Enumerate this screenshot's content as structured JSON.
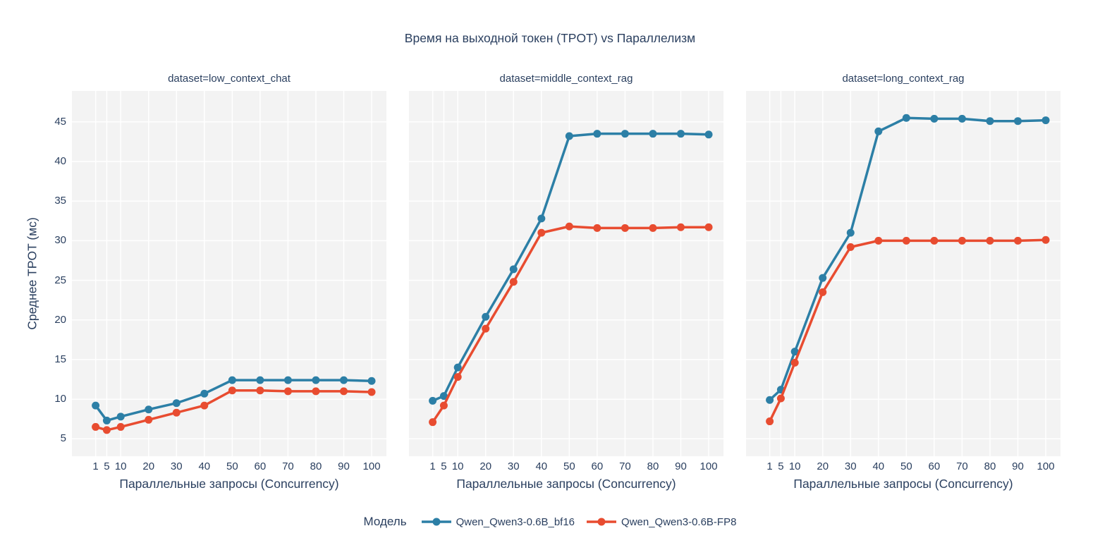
{
  "title": "Время на выходной токен (TPOT) vs Параллелизм",
  "colors": {
    "bf16": "#2c7fa6",
    "fp8": "#e84c30",
    "text": "#2a3f5f",
    "plot_background": "#f3f3f3",
    "gridline": "#ffffff"
  },
  "legend": {
    "title": "Модель",
    "items": [
      {
        "label": "Qwen_Qwen3-0.6B_bf16",
        "color": "#2c7fa6"
      },
      {
        "label": "Qwen_Qwen3-0.6B-FP8",
        "color": "#e84c30"
      }
    ]
  },
  "chart_data": {
    "type": "line",
    "title": "Время на выходной токен (TPOT) vs Параллелизм",
    "xlabel": "Параллельные запросы (Concurrency)",
    "ylabel": "Среднее TPOT (мс)",
    "x": [
      1,
      5,
      10,
      20,
      30,
      40,
      50,
      60,
      70,
      80,
      90,
      100
    ],
    "xticks": [
      1,
      5,
      10,
      20,
      30,
      40,
      50,
      60,
      70,
      80,
      90,
      100
    ],
    "yticks": [
      5,
      10,
      15,
      20,
      25,
      30,
      35,
      40,
      45
    ],
    "xlim": [
      -7.5,
      105.3
    ],
    "ylim": [
      2.8,
      48.9
    ],
    "grid": true,
    "legend_position": "bottom-center",
    "facets": [
      {
        "label": "dataset=low_context_chat",
        "series": [
          {
            "name": "Qwen_Qwen3-0.6B_bf16",
            "values": [
              9.2,
              7.3,
              7.8,
              8.7,
              9.5,
              10.7,
              12.4,
              12.4,
              12.4,
              12.4,
              12.4,
              12.3
            ]
          },
          {
            "name": "Qwen_Qwen3-0.6B-FP8",
            "values": [
              6.5,
              6.1,
              6.5,
              7.4,
              8.3,
              9.2,
              11.1,
              11.1,
              11.0,
              11.0,
              11.0,
              10.9
            ]
          }
        ]
      },
      {
        "label": "dataset=middle_context_rag",
        "series": [
          {
            "name": "Qwen_Qwen3-0.6B_bf16",
            "values": [
              9.8,
              10.4,
              14.0,
              20.4,
              26.4,
              32.8,
              43.2,
              43.5,
              43.5,
              43.5,
              43.5,
              43.4
            ]
          },
          {
            "name": "Qwen_Qwen3-0.6B-FP8",
            "values": [
              7.1,
              9.2,
              12.8,
              18.9,
              24.8,
              31.0,
              31.8,
              31.6,
              31.6,
              31.6,
              31.7,
              31.7
            ]
          }
        ]
      },
      {
        "label": "dataset=long_context_rag",
        "series": [
          {
            "name": "Qwen_Qwen3-0.6B_bf16",
            "values": [
              9.9,
              11.2,
              16.0,
              25.3,
              31.0,
              43.8,
              45.5,
              45.4,
              45.4,
              45.1,
              45.1,
              45.2
            ]
          },
          {
            "name": "Qwen_Qwen3-0.6B-FP8",
            "values": [
              7.2,
              10.1,
              14.6,
              23.5,
              29.2,
              30.0,
              30.0,
              30.0,
              30.0,
              30.0,
              30.0,
              30.1
            ]
          }
        ]
      }
    ]
  }
}
